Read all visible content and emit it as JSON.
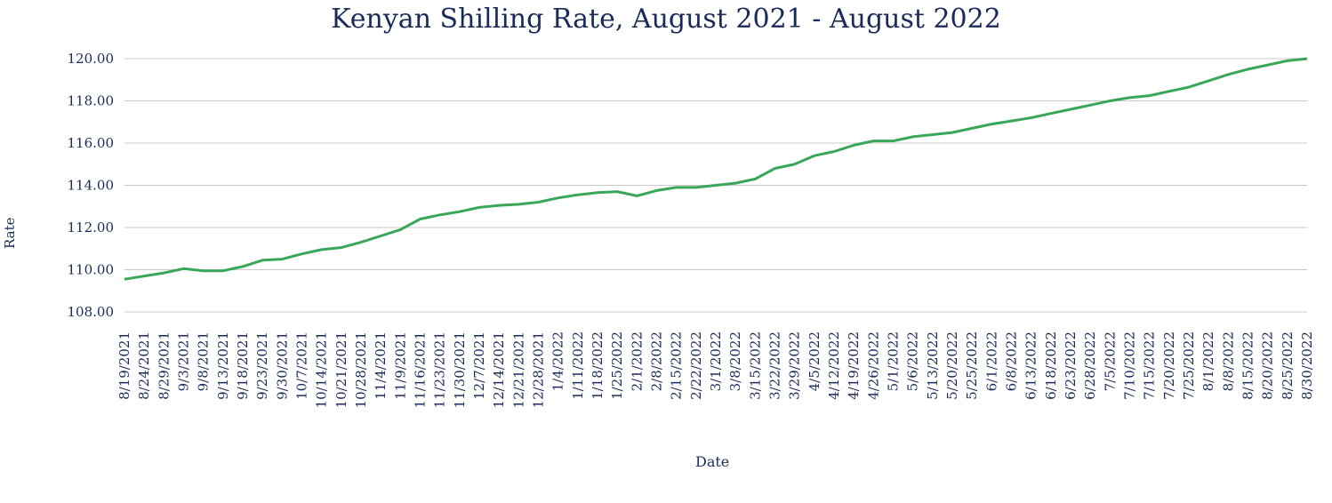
{
  "chart_data": {
    "type": "line",
    "title": "Kenyan Shilling Rate, August 2021 - August 2022",
    "xlabel": "Date",
    "ylabel": "Rate",
    "ylim": [
      108,
      120
    ],
    "yticks": [
      "108.00",
      "110.00",
      "112.00",
      "114.00",
      "116.00",
      "118.00",
      "120.00"
    ],
    "grid": true,
    "legend": "none",
    "line_color": "#3aa65a",
    "text_color": "#1a2b5a",
    "x_tick_labels": [
      "8/19/2021",
      "8/24/2021",
      "8/29/2021",
      "9/3/2021",
      "9/8/2021",
      "9/13/2021",
      "9/18/2021",
      "9/23/2021",
      "9/30/2021",
      "10/7/2021",
      "10/14/2021",
      "10/21/2021",
      "10/28/2021",
      "11/4/2021",
      "11/9/2021",
      "11/16/2021",
      "11/23/2021",
      "11/30/2021",
      "12/7/2021",
      "12/14/2021",
      "12/21/2021",
      "12/28/2021",
      "1/4/2022",
      "1/11/2022",
      "1/18/2022",
      "1/25/2022",
      "2/1/2022",
      "2/8/2022",
      "2/15/2022",
      "2/22/2022",
      "3/1/2022",
      "3/8/2022",
      "3/15/2022",
      "3/22/2022",
      "3/29/2022",
      "4/5/2022",
      "4/12/2022",
      "4/19/2022",
      "4/26/2022",
      "5/1/2022",
      "5/6/2022",
      "5/13/2022",
      "5/20/2022",
      "5/25/2022",
      "6/1/2022",
      "6/8/2022",
      "6/13/2022",
      "6/18/2022",
      "6/23/2022",
      "6/28/2022",
      "7/5/2022",
      "7/10/2022",
      "7/15/2022",
      "7/20/2022",
      "7/25/2022",
      "8/1/2022",
      "8/8/2022",
      "8/15/2022",
      "8/20/2022",
      "8/25/2022",
      "8/30/2022"
    ],
    "x": [
      "8/19/2021",
      "8/24/2021",
      "8/29/2021",
      "9/3/2021",
      "9/8/2021",
      "9/13/2021",
      "9/18/2021",
      "9/23/2021",
      "9/30/2021",
      "10/7/2021",
      "10/14/2021",
      "10/21/2021",
      "10/28/2021",
      "11/4/2021",
      "11/9/2021",
      "11/16/2021",
      "11/23/2021",
      "11/30/2021",
      "12/7/2021",
      "12/14/2021",
      "12/21/2021",
      "12/28/2021",
      "1/4/2022",
      "1/11/2022",
      "1/18/2022",
      "1/25/2022",
      "2/1/2022",
      "2/8/2022",
      "2/15/2022",
      "2/22/2022",
      "3/1/2022",
      "3/8/2022",
      "3/15/2022",
      "3/22/2022",
      "3/29/2022",
      "4/5/2022",
      "4/12/2022",
      "4/19/2022",
      "4/26/2022",
      "5/1/2022",
      "5/6/2022",
      "5/13/2022",
      "5/20/2022",
      "5/25/2022",
      "6/1/2022",
      "6/8/2022",
      "6/13/2022",
      "6/18/2022",
      "6/23/2022",
      "6/28/2022",
      "7/5/2022",
      "7/10/2022",
      "7/15/2022",
      "7/20/2022",
      "7/25/2022",
      "8/1/2022",
      "8/8/2022",
      "8/15/2022",
      "8/20/2022",
      "8/25/2022",
      "8/30/2022"
    ],
    "series": [
      {
        "values": [
          109.55,
          109.7,
          109.85,
          110.05,
          109.95,
          109.95,
          110.15,
          110.45,
          110.5,
          110.75,
          110.95,
          111.05,
          111.3,
          111.6,
          111.9,
          112.4,
          112.6,
          112.75,
          112.95,
          113.05,
          113.1,
          113.2,
          113.4,
          113.55,
          113.65,
          113.7,
          113.5,
          113.75,
          113.9,
          113.9,
          114.0,
          114.1,
          114.3,
          114.8,
          115.0,
          115.4,
          115.6,
          115.9,
          116.1,
          116.1,
          116.3,
          116.4,
          116.5,
          116.7,
          116.9,
          117.05,
          117.2,
          117.4,
          117.6,
          117.8,
          118.0,
          118.15,
          118.25,
          118.45,
          118.65,
          118.95,
          119.25,
          119.5,
          119.7,
          119.9,
          120.0
        ]
      }
    ]
  }
}
